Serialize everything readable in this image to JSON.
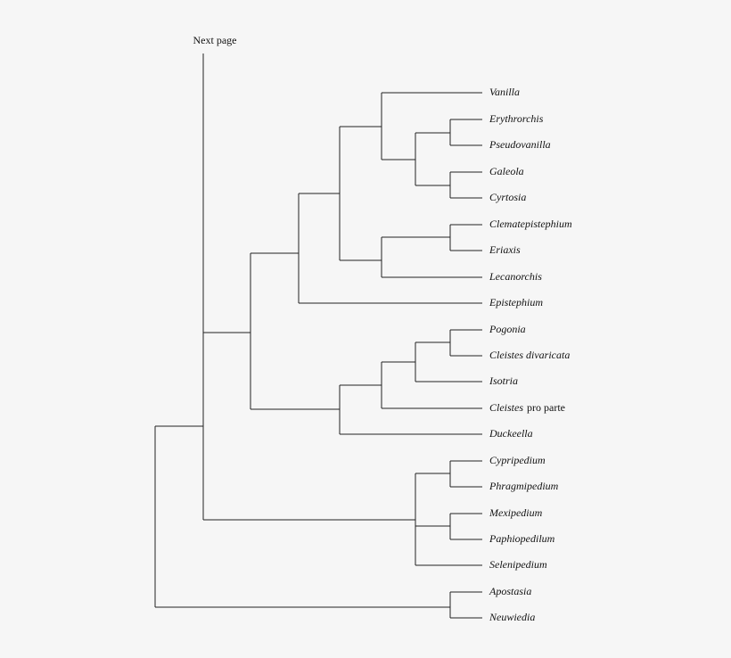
{
  "header": "Next page",
  "taxa": [
    "Vanilla",
    "Erythrorchis",
    "Pseudovanilla",
    "Galeola",
    "Cyrtosia",
    "Clematepistephium",
    "Eriaxis",
    "Lecanorchis",
    "Epistephium",
    "Pogonia",
    "Cleistes divaricata",
    "Isotria",
    {
      "name": "Cleistes",
      "qualifier": "pro parte"
    },
    "Duckeella",
    "Cypripedium",
    "Phragmipedium",
    "Mexipedium",
    "Paphiopedilum",
    "Selenipedium",
    "Apostasia",
    "Neuwiedia"
  ]
}
